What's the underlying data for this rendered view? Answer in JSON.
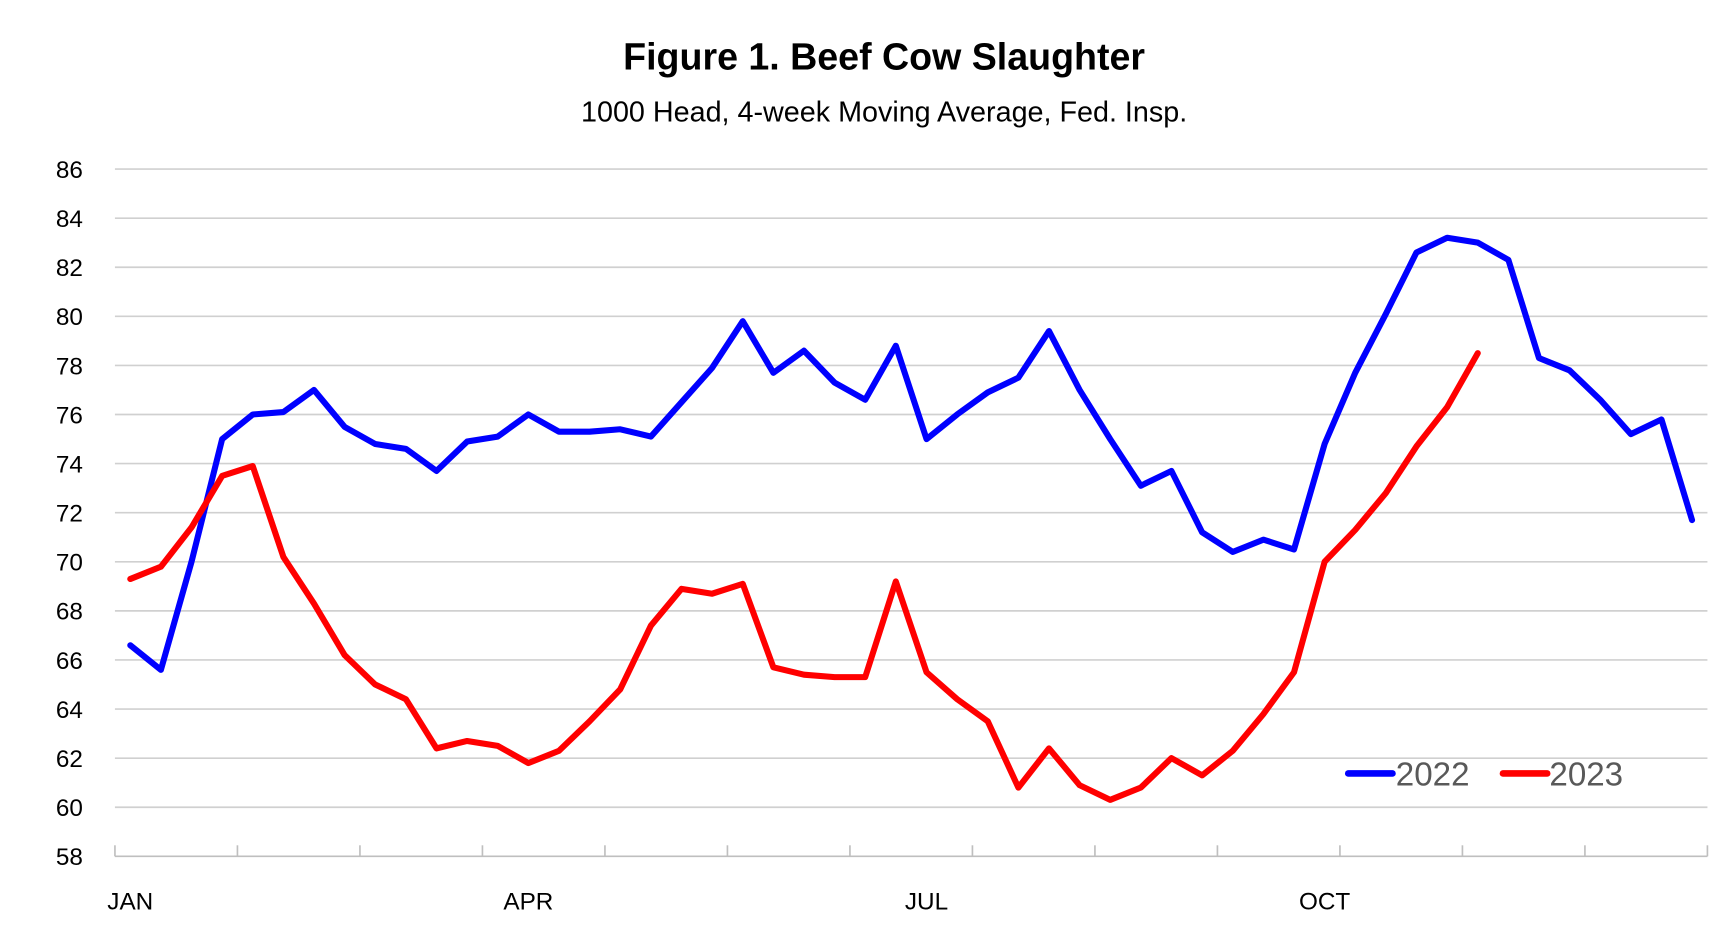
{
  "chart_data": {
    "type": "line",
    "title": "Figure 1. Beef Cow Slaughter",
    "subtitle": "1000 Head, 4-week Moving Average, Fed. Insp.",
    "xlabel": "",
    "ylabel": "",
    "x_unit": "week of year",
    "x_tick_labels": [
      {
        "label": "JAN",
        "week": 1
      },
      {
        "label": "APR",
        "week": 14
      },
      {
        "label": "JUL",
        "week": 27
      },
      {
        "label": "OCT",
        "week": 40
      }
    ],
    "weeks_in_axis": 52,
    "ylim": [
      58,
      86
    ],
    "y_ticks": [
      "58",
      "60",
      "62",
      "64",
      "66",
      "68",
      "70",
      "72",
      "74",
      "76",
      "78",
      "80",
      "82",
      "84",
      "86"
    ],
    "grid": true,
    "legend_position": "bottom-right",
    "series": [
      {
        "name": "2022",
        "color": "#0000ff",
        "values": [
          66.6,
          65.6,
          70.0,
          75.0,
          76.0,
          76.1,
          77.0,
          75.5,
          74.8,
          74.6,
          73.7,
          74.9,
          75.1,
          76.0,
          75.3,
          75.3,
          75.4,
          75.1,
          76.5,
          77.9,
          79.8,
          77.7,
          78.6,
          77.3,
          76.6,
          78.8,
          75.0,
          76.0,
          76.9,
          77.5,
          79.4,
          77.0,
          75.0,
          73.1,
          73.7,
          71.2,
          70.4,
          70.9,
          70.5,
          74.8,
          77.7,
          80.1,
          82.6,
          83.2,
          83.0,
          82.3,
          78.3,
          77.8,
          76.6,
          75.2,
          75.8,
          71.7
        ]
      },
      {
        "name": "2023",
        "color": "#ff0000",
        "values": [
          69.3,
          69.8,
          71.4,
          73.5,
          73.9,
          70.2,
          68.3,
          66.2,
          65.0,
          64.4,
          62.4,
          62.7,
          62.5,
          61.8,
          62.3,
          63.5,
          64.8,
          67.4,
          68.9,
          68.7,
          69.1,
          65.7,
          65.4,
          65.3,
          65.3,
          69.2,
          65.5,
          64.4,
          63.5,
          60.8,
          62.4,
          60.9,
          60.3,
          60.8,
          62.0,
          61.3,
          62.3,
          63.8,
          65.5,
          70.0,
          71.3,
          72.8,
          74.7,
          76.3,
          78.5
        ]
      }
    ]
  }
}
